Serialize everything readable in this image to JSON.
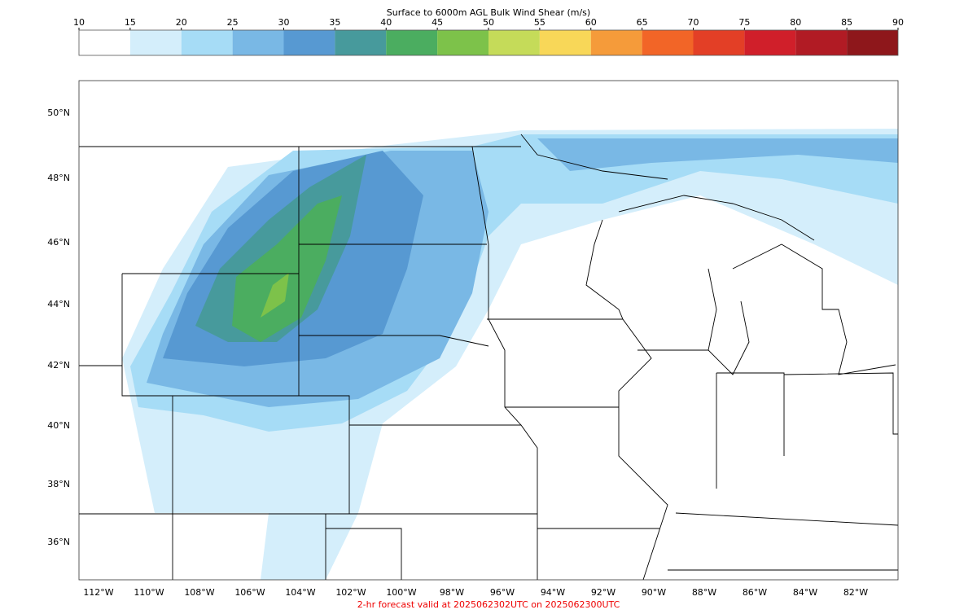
{
  "colorbar": {
    "title": "Surface to 6000m AGL Bulk Wind Shear (m/s)",
    "ticks": [
      10,
      15,
      20,
      25,
      30,
      35,
      40,
      45,
      50,
      55,
      60,
      65,
      70,
      75,
      80,
      85,
      90
    ],
    "colors": [
      "#ffffff",
      "#d4eefb",
      "#a6dcf6",
      "#79b8e5",
      "#5799d2",
      "#479a9c",
      "#4bad60",
      "#7dc24a",
      "#c5db59",
      "#f8d758",
      "#f59b3a",
      "#f26527",
      "#e33f26",
      "#d01f2a",
      "#b11b24",
      "#8e171b"
    ]
  },
  "map": {
    "lat_labels": [
      "50°N",
      "48°N",
      "46°N",
      "44°N",
      "42°N",
      "40°N",
      "38°N",
      "36°N"
    ],
    "lon_labels": [
      "112°W",
      "110°W",
      "108°W",
      "106°W",
      "104°W",
      "102°W",
      "100°W",
      "98°W",
      "96°W",
      "94°W",
      "92°W",
      "90°W",
      "88°W",
      "86°W",
      "84°W",
      "82°W"
    ]
  },
  "footer": "2-hr forecast valid at 2025062302UTC on 2025062300UTC"
}
